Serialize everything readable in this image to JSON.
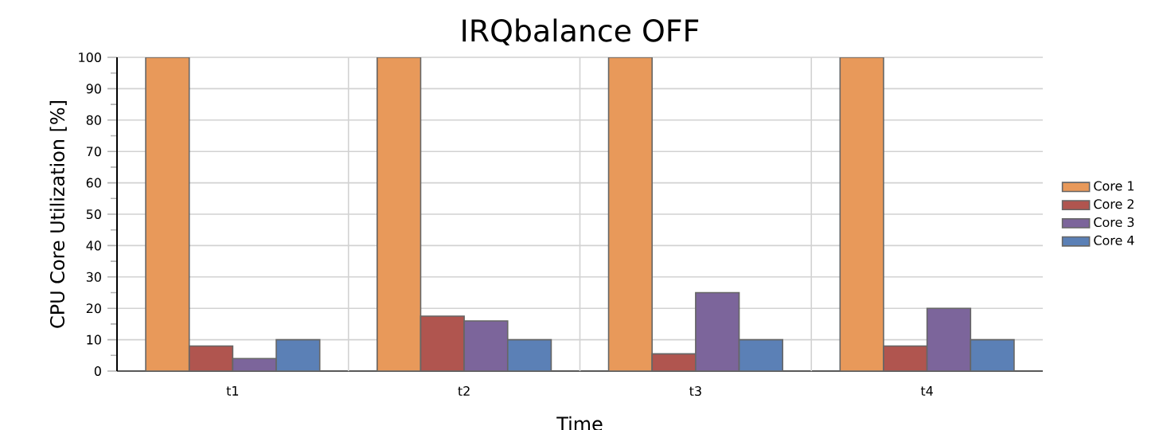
{
  "chart_data": {
    "type": "bar",
    "title": "IRQbalance OFF",
    "xlabel": "Time",
    "ylabel": "CPU Core Utilization [%]",
    "categories": [
      "t1",
      "t2",
      "t3",
      "t4"
    ],
    "series": [
      {
        "name": "Core 1",
        "color": "#e8995a",
        "values": [
          100,
          100,
          100,
          100
        ]
      },
      {
        "name": "Core 2",
        "color": "#b0554f",
        "values": [
          8,
          17.5,
          5.5,
          8
        ]
      },
      {
        "name": "Core 3",
        "color": "#7c659b",
        "values": [
          4,
          16,
          25,
          20
        ]
      },
      {
        "name": "Core 4",
        "color": "#5b80b6",
        "values": [
          10,
          10,
          10,
          10
        ]
      }
    ],
    "ylim": [
      0,
      100
    ],
    "yticks": [
      0,
      10,
      20,
      30,
      40,
      50,
      60,
      70,
      80,
      90,
      100
    ],
    "grid": true,
    "legend": "right"
  }
}
